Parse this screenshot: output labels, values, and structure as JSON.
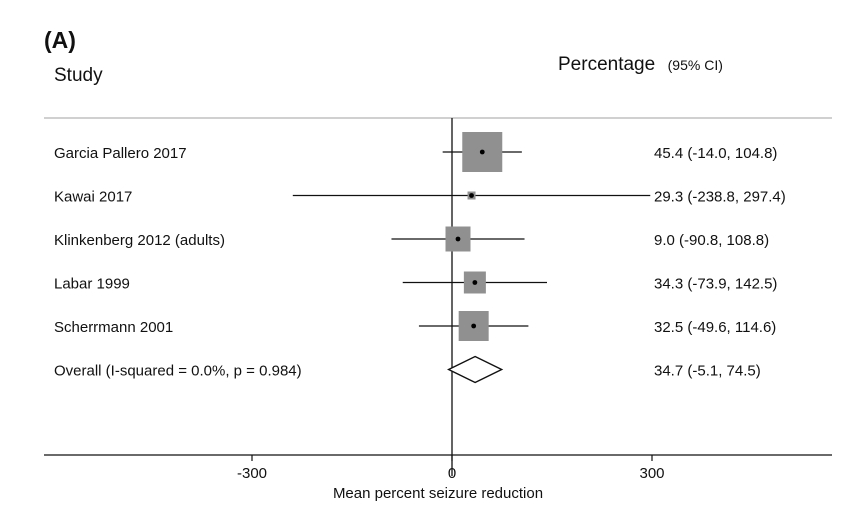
{
  "panel_label": "(A)",
  "header": {
    "study": "Study",
    "estimate": "Percentage",
    "ci": "(95% CI)"
  },
  "chart_data": {
    "type": "forest",
    "title": "",
    "xlabel": "Mean percent seizure reduction",
    "x_ticks": [
      -300,
      0,
      300
    ],
    "xlim": [
      -610,
      580
    ],
    "null_line": 0,
    "studies": [
      {
        "name": "Garcia Pallero 2017",
        "estimate": 45.4,
        "lower": -14.0,
        "upper": 104.8,
        "label": "45.4 (-14.0, 104.8)"
      },
      {
        "name": "Kawai 2017",
        "estimate": 29.3,
        "lower": -238.8,
        "upper": 297.4,
        "label": "29.3 (-238.8, 297.4)"
      },
      {
        "name": "Klinkenberg 2012 (adults)",
        "estimate": 9.0,
        "lower": -90.8,
        "upper": 108.8,
        "label": "9.0 (-90.8, 108.8)"
      },
      {
        "name": "Labar 1999",
        "estimate": 34.3,
        "lower": -73.9,
        "upper": 142.5,
        "label": "34.3 (-73.9, 142.5)"
      },
      {
        "name": "Scherrmann 2001",
        "estimate": 32.5,
        "lower": -49.6,
        "upper": 114.6,
        "label": "32.5 (-49.6, 114.6)"
      }
    ],
    "overall": {
      "name": "Overall  (I-squared = 0.0%, p = 0.984)",
      "estimate": 34.7,
      "lower": -5.1,
      "upper": 74.5,
      "label": "34.7 (-5.1, 74.5)"
    },
    "colors": {
      "box": "#909090",
      "line": "#111111",
      "rule": "#b4b4b4"
    }
  }
}
